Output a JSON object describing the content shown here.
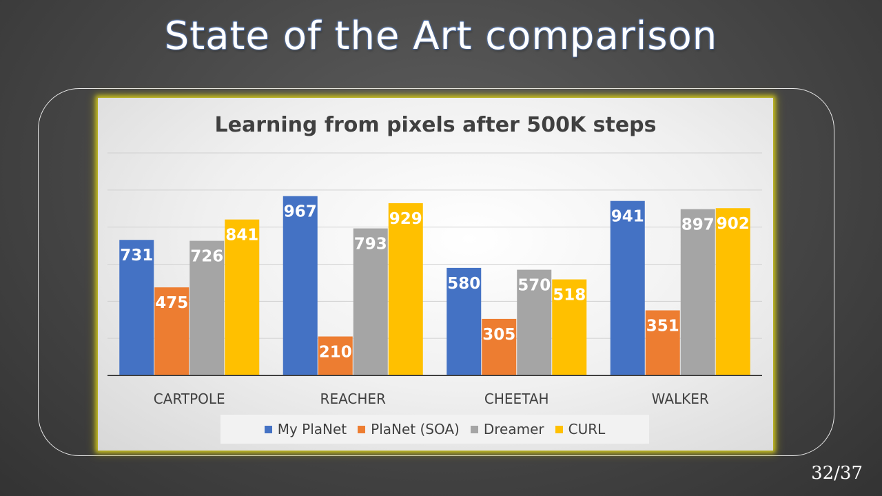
{
  "slide": {
    "title": "State of the Art comparison",
    "page_number": "32/37"
  },
  "chart_data": {
    "type": "bar",
    "title": "Learning from pixels after 500K steps",
    "categories": [
      "CARTPOLE",
      "REACHER",
      "CHEETAH",
      "WALKER"
    ],
    "series": [
      {
        "name": "My PlaNet",
        "color": "#4472c4",
        "values": [
          731,
          967,
          580,
          941
        ]
      },
      {
        "name": "PlaNet (SOA)",
        "color": "#ed7d31",
        "values": [
          475,
          210,
          305,
          351
        ]
      },
      {
        "name": "Dreamer",
        "color": "#a5a5a5",
        "values": [
          726,
          793,
          570,
          897
        ]
      },
      {
        "name": "CURL",
        "color": "#ffc000",
        "values": [
          841,
          929,
          518,
          902
        ]
      }
    ],
    "ylim": [
      0,
      1200
    ],
    "grid": true,
    "data_labels": true,
    "legend": "bottom",
    "xlabel": "",
    "ylabel": ""
  }
}
